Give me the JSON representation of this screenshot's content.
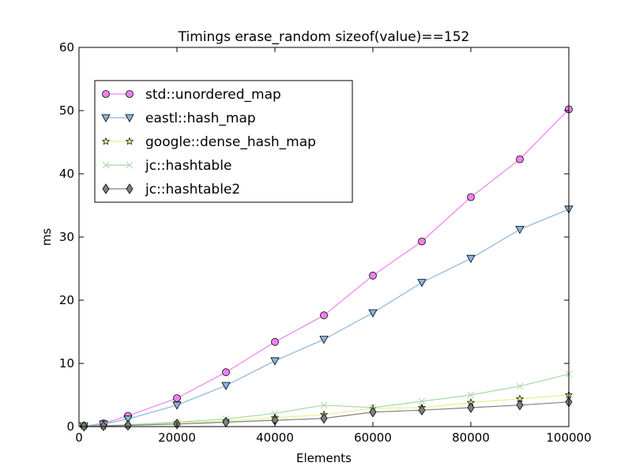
{
  "chart_data": {
    "type": "line",
    "title": "Timings erase_random sizeof(value)==152",
    "xlabel": "Elements",
    "ylabel": "ms",
    "xlim": [
      0,
      100000
    ],
    "ylim": [
      0,
      60
    ],
    "xticks": [
      0,
      20000,
      40000,
      60000,
      80000,
      100000
    ],
    "yticks": [
      0,
      10,
      20,
      30,
      40,
      50,
      60
    ],
    "grid": false,
    "legend": "upper-left",
    "x": [
      1000,
      5000,
      10000,
      20000,
      30000,
      40000,
      50000,
      60000,
      70000,
      80000,
      90000,
      100000
    ],
    "series": [
      {
        "name": "std::unordered_map",
        "marker": "circle",
        "line_color": "#ee82ee",
        "marker_fill": "#ee82ee",
        "values": [
          0.1,
          0.5,
          1.7,
          4.5,
          8.6,
          13.4,
          17.6,
          23.9,
          29.3,
          36.3,
          42.3,
          50.2
        ]
      },
      {
        "name": "eastl::hash_map",
        "marker": "triangle-down",
        "line_color": "#8ab4e0",
        "marker_fill": "#8ab4e0",
        "values": [
          0.1,
          0.4,
          1.2,
          3.4,
          6.5,
          10.4,
          13.8,
          18.0,
          22.8,
          26.6,
          31.2,
          34.4
        ]
      },
      {
        "name": "google::dense_hash_map",
        "marker": "star",
        "line_color": "#e8f08a",
        "marker_fill": "#e8f08a",
        "values": [
          0.05,
          0.1,
          0.2,
          0.6,
          0.9,
          1.4,
          1.9,
          2.9,
          3.0,
          3.8,
          4.4,
          5.0
        ]
      },
      {
        "name": "jc::hashtable",
        "marker": "x",
        "line_color": "#a8d8a8",
        "marker_fill": "#a8d8a8",
        "values": [
          0.05,
          0.15,
          0.3,
          0.7,
          1.2,
          2.1,
          3.4,
          3.0,
          4.0,
          5.0,
          6.4,
          8.3
        ]
      },
      {
        "name": "jc::hashtable2",
        "marker": "diamond",
        "line_color": "#808080",
        "marker_fill": "#808080",
        "values": [
          0.05,
          0.1,
          0.2,
          0.4,
          0.7,
          1.0,
          1.3,
          2.3,
          2.6,
          3.0,
          3.4,
          3.9
        ]
      }
    ]
  }
}
